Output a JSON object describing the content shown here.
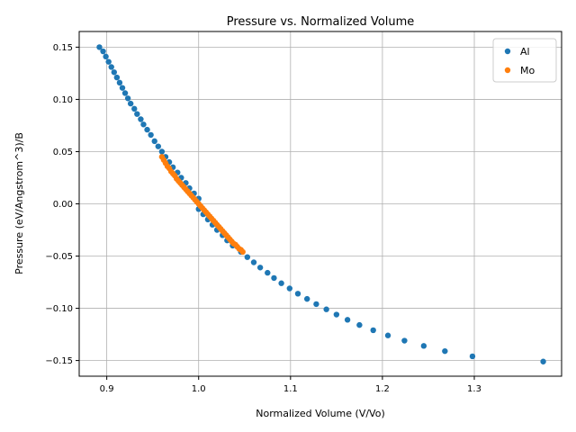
{
  "chart_data": {
    "type": "scatter",
    "title": "Pressure vs. Normalized Volume",
    "xlabel": "Normalized Volume (V/Vo)",
    "ylabel": "Pressure (eV/Angstrom^3)/B",
    "xlim": [
      0.87,
      1.395
    ],
    "ylim": [
      -0.165,
      0.165
    ],
    "xticks": [
      0.9,
      1.0,
      1.1,
      1.2,
      1.3
    ],
    "xtick_labels": [
      "0.9",
      "1.0",
      "1.1",
      "1.2",
      "1.3"
    ],
    "yticks": [
      0.15,
      0.1,
      0.05,
      0.0,
      -0.05,
      -0.1,
      -0.15
    ],
    "ytick_labels": [
      "0.15",
      "0.10",
      "0.05",
      "0.00",
      "−0.05",
      "−0.10",
      "−0.15"
    ],
    "grid": true,
    "legend_position": "top-right",
    "series": [
      {
        "name": "Al",
        "color": "#1f77b4",
        "points": [
          [
            0.892,
            0.15
          ],
          [
            0.896,
            0.146
          ],
          [
            0.899,
            0.141
          ],
          [
            0.902,
            0.136
          ],
          [
            0.905,
            0.131
          ],
          [
            0.908,
            0.126
          ],
          [
            0.911,
            0.121
          ],
          [
            0.914,
            0.116
          ],
          [
            0.917,
            0.111
          ],
          [
            0.92,
            0.106
          ],
          [
            0.923,
            0.101
          ],
          [
            0.926,
            0.096
          ],
          [
            0.93,
            0.091
          ],
          [
            0.933,
            0.086
          ],
          [
            0.937,
            0.081
          ],
          [
            0.94,
            0.076
          ],
          [
            0.944,
            0.071
          ],
          [
            0.948,
            0.066
          ],
          [
            0.952,
            0.06
          ],
          [
            0.956,
            0.055
          ],
          [
            0.96,
            0.05
          ],
          [
            0.964,
            0.045
          ],
          [
            0.968,
            0.04
          ],
          [
            0.972,
            0.035
          ],
          [
            0.977,
            0.03
          ],
          [
            0.981,
            0.025
          ],
          [
            0.986,
            0.02
          ],
          [
            0.99,
            0.015
          ],
          [
            0.995,
            0.01
          ],
          [
            1.0,
            0.005
          ],
          [
            1.0,
            -0.005
          ],
          [
            1.005,
            -0.01
          ],
          [
            1.01,
            -0.015
          ],
          [
            1.015,
            -0.02
          ],
          [
            1.02,
            -0.025
          ],
          [
            1.026,
            -0.03
          ],
          [
            1.031,
            -0.035
          ],
          [
            1.037,
            -0.04
          ],
          [
            1.046,
            -0.046
          ],
          [
            1.053,
            -0.051
          ],
          [
            1.06,
            -0.056
          ],
          [
            1.067,
            -0.061
          ],
          [
            1.075,
            -0.066
          ],
          [
            1.082,
            -0.071
          ],
          [
            1.09,
            -0.076
          ],
          [
            1.099,
            -0.081
          ],
          [
            1.108,
            -0.086
          ],
          [
            1.118,
            -0.091
          ],
          [
            1.128,
            -0.096
          ],
          [
            1.139,
            -0.101
          ],
          [
            1.15,
            -0.106
          ],
          [
            1.162,
            -0.111
          ],
          [
            1.175,
            -0.116
          ],
          [
            1.19,
            -0.121
          ],
          [
            1.206,
            -0.126
          ],
          [
            1.224,
            -0.131
          ],
          [
            1.245,
            -0.136
          ],
          [
            1.268,
            -0.141
          ],
          [
            1.298,
            -0.146
          ],
          [
            1.375,
            -0.151
          ]
        ]
      },
      {
        "name": "Mo",
        "color": "#ff7f0e",
        "points": [
          [
            0.96,
            0.045
          ],
          [
            0.962,
            0.042
          ],
          [
            0.964,
            0.039
          ],
          [
            0.966,
            0.036
          ],
          [
            0.968,
            0.034
          ],
          [
            0.97,
            0.031
          ],
          [
            0.972,
            0.029
          ],
          [
            0.974,
            0.027
          ],
          [
            0.976,
            0.024
          ],
          [
            0.978,
            0.022
          ],
          [
            0.98,
            0.02
          ],
          [
            0.982,
            0.018
          ],
          [
            0.984,
            0.016
          ],
          [
            0.986,
            0.014
          ],
          [
            0.988,
            0.012
          ],
          [
            0.99,
            0.01
          ],
          [
            0.992,
            0.008
          ],
          [
            0.994,
            0.006
          ],
          [
            0.996,
            0.004
          ],
          [
            0.998,
            0.002
          ],
          [
            1.0,
            0.0
          ],
          [
            1.002,
            -0.002
          ],
          [
            1.004,
            -0.004
          ],
          [
            1.006,
            -0.006
          ],
          [
            1.008,
            -0.008
          ],
          [
            1.01,
            -0.01
          ],
          [
            1.012,
            -0.012
          ],
          [
            1.014,
            -0.014
          ],
          [
            1.016,
            -0.016
          ],
          [
            1.018,
            -0.018
          ],
          [
            1.02,
            -0.02
          ],
          [
            1.022,
            -0.022
          ],
          [
            1.024,
            -0.024
          ],
          [
            1.026,
            -0.026
          ],
          [
            1.028,
            -0.028
          ],
          [
            1.03,
            -0.03
          ],
          [
            1.032,
            -0.032
          ],
          [
            1.034,
            -0.034
          ],
          [
            1.036,
            -0.036
          ],
          [
            1.038,
            -0.038
          ],
          [
            1.04,
            -0.039
          ],
          [
            1.042,
            -0.041
          ],
          [
            1.044,
            -0.043
          ],
          [
            1.046,
            -0.044
          ],
          [
            1.048,
            -0.046
          ]
        ]
      }
    ]
  }
}
